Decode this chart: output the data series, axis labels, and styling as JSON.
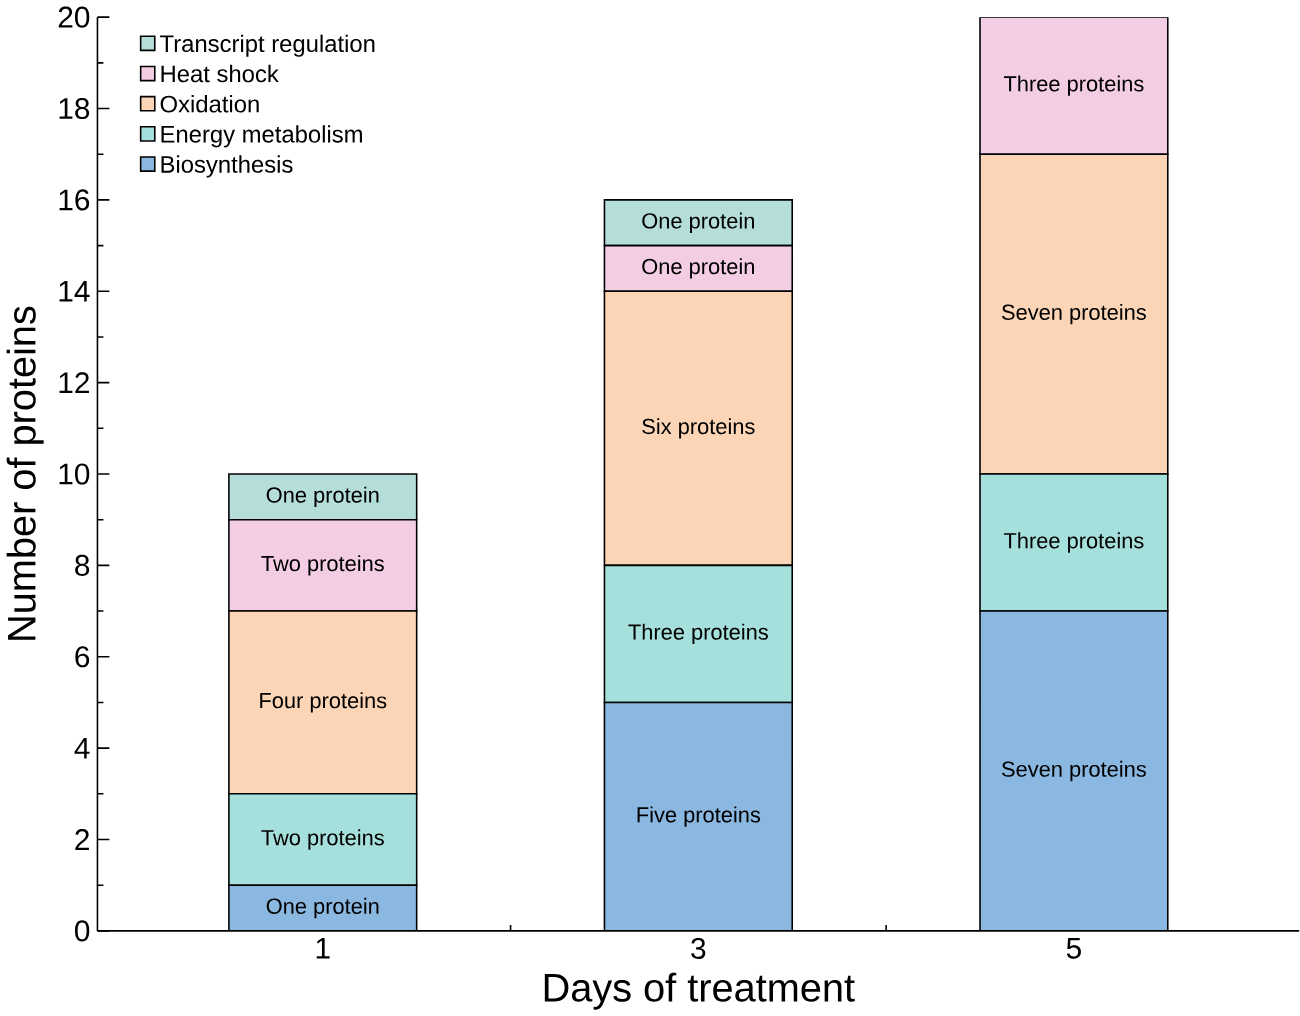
{
  "chart_data": {
    "type": "bar",
    "stacked": true,
    "xlabel": "Days of treatment",
    "ylabel": "Number of proteins",
    "categories": [
      "1",
      "3",
      "5"
    ],
    "ylim": [
      0,
      20
    ],
    "yticks": [
      0,
      2,
      4,
      6,
      8,
      10,
      12,
      14,
      16,
      18,
      20
    ],
    "legend": "top left",
    "grid": false,
    "series": [
      {
        "name": "Biosynthesis",
        "color": "#8ab8e0",
        "values": [
          1,
          5,
          7
        ],
        "value_labels": [
          "One protein",
          "Five proteins",
          "Seven proteins"
        ]
      },
      {
        "name": "Energy metabolism",
        "color": "#a6e0dc",
        "values": [
          2,
          3,
          3
        ],
        "value_labels": [
          "Two proteins",
          "Three proteins",
          "Three proteins"
        ]
      },
      {
        "name": "Oxidation",
        "color": "#fbd5b5",
        "values": [
          4,
          6,
          7
        ],
        "value_labels": [
          "Four proteins",
          "Six proteins",
          "Seven proteins"
        ]
      },
      {
        "name": "Heat shock",
        "color": "#f3cde3",
        "values": [
          2,
          1,
          3
        ],
        "value_labels": [
          "Two proteins",
          "One protein",
          "Three proteins"
        ]
      },
      {
        "name": "Transcript regulation",
        "color": "#b5ddd9",
        "values": [
          1,
          1,
          null
        ],
        "value_labels": [
          "One protein",
          "One protein",
          null
        ]
      }
    ]
  }
}
